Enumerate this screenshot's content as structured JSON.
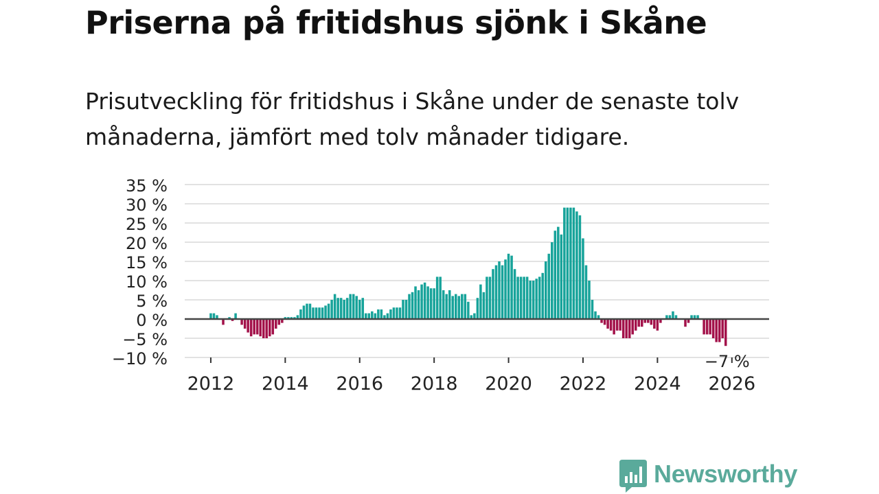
{
  "title": "Priserna på fritidshus sjönk i Skåne",
  "subtitle": "Prisutveckling för fritidshus i Skåne under de senaste tolv månaderna, jämfört med tolv månader tidigare.",
  "brand": {
    "name": "Newsworthy",
    "logo_icon": "bar-chart-speech-bubble-icon"
  },
  "colors": {
    "positive": "#17a39a",
    "negative": "#a3124a",
    "zero_line": "#444444",
    "grid": "#d9d9d9",
    "brand": "#5aaa9b"
  },
  "chart_data": {
    "type": "bar",
    "title": "Priserna på fritidshus sjönk i Skåne",
    "xlabel": "",
    "ylabel": "",
    "ylim": [
      -10,
      35
    ],
    "xlim": [
      2011.3,
      2027
    ],
    "yticks": [
      35,
      30,
      25,
      20,
      15,
      10,
      5,
      0,
      -5,
      -10
    ],
    "ytick_labels": [
      "35 %",
      "30 %",
      "25 %",
      "20 %",
      "15 %",
      "10 %",
      "5 %",
      "0 %",
      "−5 %",
      "−10 %"
    ],
    "xticks": [
      2012,
      2014,
      2016,
      2018,
      2020,
      2022,
      2024,
      2026
    ],
    "xtick_labels": [
      "2012",
      "2014",
      "2016",
      "2018",
      "2020",
      "2022",
      "2024",
      "2026"
    ],
    "x_start": 2012.0,
    "x_step": 0.08333,
    "value_unit": "%",
    "last_value_label": "−7 %",
    "values": [
      1.5,
      1.5,
      1.0,
      0,
      -1.5,
      0,
      0.5,
      -0.5,
      1.5,
      0,
      -1.5,
      -2.5,
      -3.5,
      -4.5,
      -4.0,
      -4.0,
      -4.5,
      -5.0,
      -5.0,
      -4.5,
      -4.0,
      -2.5,
      -1.5,
      -1.0,
      0.5,
      0.5,
      0.5,
      0.5,
      1.0,
      2.5,
      3.5,
      4.0,
      4.0,
      3.0,
      3.0,
      3.0,
      3.0,
      3.5,
      4.0,
      5.0,
      6.5,
      5.5,
      5.5,
      5.0,
      5.5,
      6.5,
      6.5,
      6.0,
      5.0,
      5.5,
      1.5,
      1.5,
      2.0,
      1.5,
      2.5,
      2.5,
      1.0,
      1.5,
      2.5,
      3.0,
      3.0,
      3.0,
      5.0,
      5.0,
      6.5,
      7.0,
      8.5,
      7.5,
      9.0,
      9.5,
      8.5,
      8.0,
      8.0,
      11.0,
      11.0,
      7.5,
      6.5,
      7.5,
      6.0,
      6.5,
      6.0,
      6.5,
      6.5,
      4.5,
      1.0,
      1.5,
      5.5,
      9.0,
      7.0,
      11.0,
      11.0,
      13.0,
      14.0,
      15.0,
      14.0,
      15.5,
      17.0,
      16.5,
      13.0,
      11.0,
      11.0,
      11.0,
      11.0,
      10.0,
      10.0,
      10.5,
      11.0,
      12.0,
      15.0,
      17.0,
      20.0,
      23.0,
      24.0,
      22.0,
      29.0,
      29.0,
      29.0,
      29.0,
      28.0,
      27.0,
      21.0,
      14.0,
      10.0,
      5.0,
      2.0,
      1.0,
      -1.0,
      -1.5,
      -2.5,
      -3.0,
      -4.0,
      -3.0,
      -3.0,
      -5.0,
      -5.0,
      -5.0,
      -4.0,
      -3.0,
      -2.0,
      -2.0,
      -1.0,
      -1.0,
      -1.5,
      -2.5,
      -3.0,
      -1.0,
      0,
      1.0,
      1.0,
      2.0,
      1.0,
      0,
      0,
      -2.0,
      -1.0,
      1.0,
      1.0,
      1.0,
      0,
      -4.0,
      -4.0,
      -4.0,
      -5.0,
      -6.0,
      -6.0,
      -5.0,
      -7.0
    ]
  }
}
